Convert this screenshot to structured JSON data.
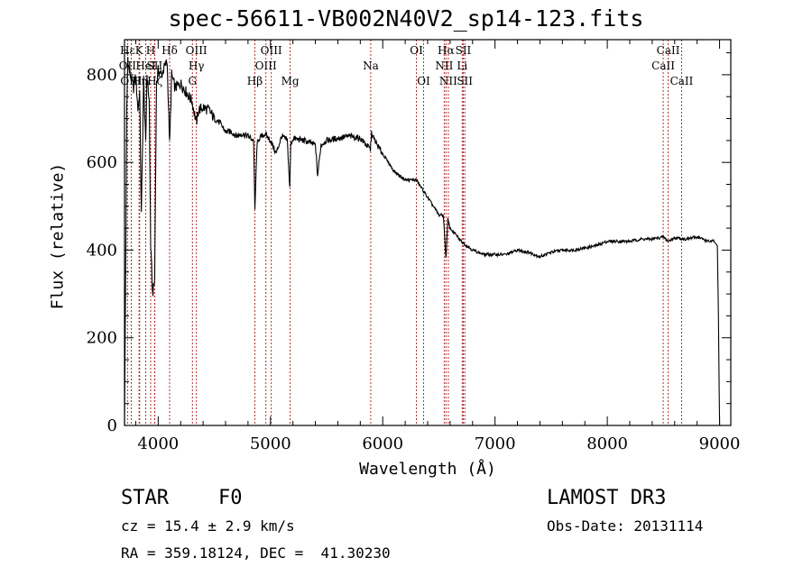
{
  "chart_data": {
    "type": "line",
    "title": "spec-56611-VB002N40V2_sp14-123.fits",
    "xlabel": "Wavelength (Å)",
    "ylabel": "Flux (relative)",
    "xlim": [
      3700,
      9100
    ],
    "ylim": [
      0,
      880
    ],
    "xticks": [
      4000,
      5000,
      6000,
      7000,
      8000,
      9000
    ],
    "yticks": [
      0,
      200,
      400,
      600,
      800
    ],
    "series": [
      {
        "name": "flux",
        "x": [
          3700,
          3710,
          3720,
          3730,
          3740,
          3760,
          3780,
          3800,
          3820,
          3835,
          3850,
          3870,
          3889,
          3900,
          3920,
          3933,
          3950,
          3968,
          3985,
          4000,
          4030,
          4060,
          4080,
          4102,
          4120,
          4150,
          4200,
          4250,
          4300,
          4340,
          4360,
          4400,
          4450,
          4500,
          4550,
          4600,
          4650,
          4700,
          4750,
          4800,
          4850,
          4861,
          4880,
          4900,
          4950,
          5000,
          5050,
          5100,
          5150,
          5172,
          5180,
          5200,
          5300,
          5400,
          5420,
          5450,
          5500,
          5600,
          5700,
          5800,
          5890,
          5900,
          5950,
          6000,
          6100,
          6200,
          6300,
          6400,
          6500,
          6540,
          6563,
          6580,
          6600,
          6700,
          6800,
          6900,
          7000,
          7100,
          7200,
          7300,
          7400,
          7500,
          7600,
          7700,
          7800,
          7900,
          8000,
          8100,
          8200,
          8300,
          8400,
          8500,
          8542,
          8600,
          8700,
          8800,
          8900,
          8950,
          8980,
          8990,
          9000,
          9010
        ],
        "values": [
          0,
          330,
          720,
          840,
          810,
          790,
          770,
          800,
          720,
          760,
          480,
          790,
          640,
          800,
          740,
          410,
          300,
          330,
          780,
          810,
          800,
          820,
          830,
          640,
          800,
          770,
          780,
          760,
          740,
          690,
          720,
          725,
          720,
          700,
          690,
          670,
          670,
          660,
          665,
          660,
          650,
          490,
          640,
          655,
          665,
          650,
          620,
          660,
          650,
          540,
          640,
          655,
          650,
          640,
          570,
          640,
          650,
          655,
          660,
          655,
          630,
          665,
          640,
          620,
          580,
          560,
          560,
          520,
          480,
          480,
          380,
          470,
          450,
          420,
          400,
          390,
          390,
          390,
          400,
          395,
          385,
          395,
          400,
          400,
          405,
          410,
          420,
          420,
          420,
          425,
          425,
          430,
          420,
          428,
          425,
          430,
          420,
          420,
          410,
          250,
          0,
          0
        ]
      }
    ],
    "lines": [
      {
        "label": "Hε",
        "wavelength": 3727,
        "row": 1
      },
      {
        "label": "OII",
        "wavelength": 3727,
        "row": 2
      },
      {
        "label": "OIII",
        "wavelength": 3760,
        "row": 3
      },
      {
        "label": "K",
        "wavelength": 3830,
        "row": 1
      },
      {
        "label": "Hη",
        "wavelength": 3835,
        "row": 3
      },
      {
        "label": "HeI",
        "wavelength": 3889,
        "row": 2
      },
      {
        "label": "H",
        "wavelength": 3933,
        "row": 1
      },
      {
        "label": "SII",
        "wavelength": 3968,
        "row": 2
      },
      {
        "label": "Hζ",
        "wavelength": 3970,
        "row": 3
      },
      {
        "label": "Hδ",
        "wavelength": 4102,
        "row": 1
      },
      {
        "label": "OIII",
        "wavelength": 4340,
        "row": 1
      },
      {
        "label": "Hγ",
        "wavelength": 4340,
        "row": 2
      },
      {
        "label": "G",
        "wavelength": 4305,
        "row": 3
      },
      {
        "label": "Hβ",
        "wavelength": 4861,
        "row": 3
      },
      {
        "label": "OIII",
        "wavelength": 5007,
        "row": 1
      },
      {
        "label": "OIII",
        "wavelength": 4959,
        "row": 2
      },
      {
        "label": "Mg",
        "wavelength": 5175,
        "row": 3
      },
      {
        "label": "Na",
        "wavelength": 5893,
        "row": 2
      },
      {
        "label": "OI",
        "wavelength": 6300,
        "row": 1
      },
      {
        "label": "OI",
        "wavelength": 6364,
        "row": 3
      },
      {
        "label": "Hα",
        "wavelength": 6563,
        "row": 1
      },
      {
        "label": "NII",
        "wavelength": 6548,
        "row": 2
      },
      {
        "label": "NII",
        "wavelength": 6584,
        "row": 3
      },
      {
        "label": "SII",
        "wavelength": 6717,
        "row": 1
      },
      {
        "label": "Li",
        "wavelength": 6708,
        "row": 2
      },
      {
        "label": "SII",
        "wavelength": 6731,
        "row": 3
      },
      {
        "label": "CaII",
        "wavelength": 8542,
        "row": 1
      },
      {
        "label": "CaII",
        "wavelength": 8498,
        "row": 2
      },
      {
        "label": "CaII",
        "wavelength": 8662,
        "row": 3
      }
    ]
  },
  "info": {
    "class": "STAR",
    "subclass": "F0",
    "survey": "LAMOST DR3",
    "cz": "cz = 15.4 ± 2.9 km/s",
    "obs_date": "Obs-Date: 20131114",
    "coords": "RA = 359.18124, DEC =  41.30230"
  },
  "colors": {
    "line_marker": "#b03030",
    "spectrum": "#000000"
  }
}
